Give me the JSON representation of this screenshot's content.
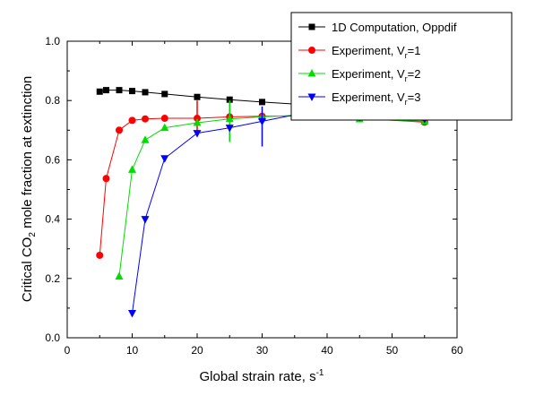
{
  "chart_data": {
    "type": "line",
    "xlabel": "Global strain rate, s",
    "xlabel_sup": "-1",
    "ylabel_pre": "Critical CO",
    "ylabel_sub": "2",
    "ylabel_post": " mole fraction at extinction",
    "xlim": [
      0,
      60
    ],
    "ylim": [
      0.0,
      1.0
    ],
    "xticks": [
      "0",
      "10",
      "20",
      "30",
      "40",
      "50",
      "60"
    ],
    "yticks": [
      "0.0",
      "0.2",
      "0.4",
      "0.6",
      "0.8",
      "1.0"
    ],
    "legend_position": "top-right",
    "series": [
      {
        "name": "1D Computation, Oppdif",
        "name_pre": "1D Computation, Oppdif",
        "name_sub": "",
        "name_post": "",
        "color": "#000000",
        "marker": "square",
        "x": [
          5,
          6,
          8,
          10,
          12,
          15,
          20,
          25,
          30,
          35,
          45,
          55
        ],
        "y": [
          0.83,
          0.835,
          0.835,
          0.832,
          0.828,
          0.822,
          0.812,
          0.803,
          0.795,
          0.788,
          0.775,
          0.762
        ],
        "errors": []
      },
      {
        "name": "Experiment, Vr=1",
        "name_pre": "Experiment, V",
        "name_sub": "r",
        "name_post": "=1",
        "color": "#ff0000",
        "marker": "circle",
        "x": [
          5,
          6,
          8,
          10,
          12,
          15,
          20,
          25,
          30,
          35,
          45,
          55
        ],
        "y": [
          0.278,
          0.537,
          0.7,
          0.733,
          0.738,
          0.74,
          0.74,
          0.745,
          0.747,
          0.748,
          0.74,
          0.727
        ],
        "errors": [
          {
            "x": 20,
            "low": 0.7,
            "high": 0.8
          }
        ]
      },
      {
        "name": "Experiment, Vr=2",
        "name_pre": "Experiment, V",
        "name_sub": "r",
        "name_post": "=2",
        "color": "#00dd00",
        "marker": "triangle-up",
        "x": [
          8,
          10,
          12,
          15,
          20,
          25,
          30,
          35,
          45,
          55
        ],
        "y": [
          0.207,
          0.567,
          0.667,
          0.708,
          0.725,
          0.738,
          0.745,
          0.75,
          0.737,
          0.73
        ],
        "errors": [
          {
            "x": 25,
            "low": 0.66,
            "high": 0.8
          }
        ]
      },
      {
        "name": "Experiment, Vr=3",
        "name_pre": "Experiment, V",
        "name_sub": "r",
        "name_post": "=3",
        "color": "#0000ff",
        "marker": "triangle-down",
        "x": [
          10,
          12,
          15,
          20,
          25,
          30,
          35,
          45,
          55
        ],
        "y": [
          0.083,
          0.4,
          0.605,
          0.69,
          0.708,
          0.73,
          0.752,
          0.745,
          0.738
        ],
        "errors": [
          {
            "x": 30,
            "low": 0.645,
            "high": 0.78
          }
        ]
      }
    ]
  }
}
